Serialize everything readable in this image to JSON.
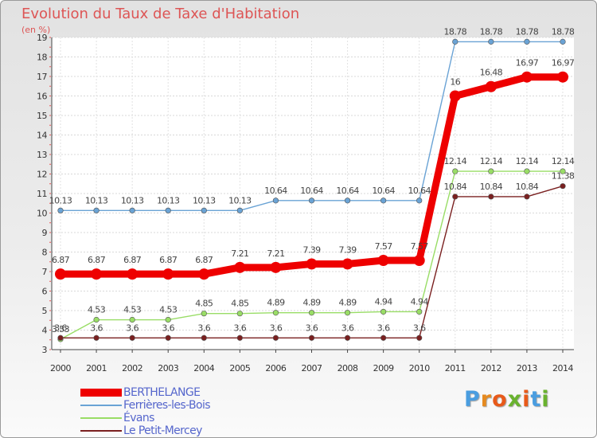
{
  "chart_data": {
    "type": "line",
    "title": "Evolution du Taux de Taxe d'Habitation",
    "unit_label": "(en %)",
    "x": [
      "2000",
      "2001",
      "2002",
      "2003",
      "2004",
      "2005",
      "2006",
      "2007",
      "2008",
      "2009",
      "2010",
      "2011",
      "2012",
      "2013",
      "2014"
    ],
    "ylim": [
      3,
      19
    ],
    "yticks": [
      "3",
      "4",
      "5",
      "6",
      "7",
      "8",
      "9",
      "10",
      "11",
      "12",
      "13",
      "14",
      "15",
      "16",
      "17",
      "18",
      "19"
    ],
    "grid": true,
    "legend_position": "bottom-left",
    "series": [
      {
        "name": "BERTHELANGE",
        "color": "#ee0000",
        "values": [
          6.87,
          6.87,
          6.87,
          6.87,
          6.87,
          7.21,
          7.21,
          7.39,
          7.39,
          7.57,
          7.57,
          16,
          16.48,
          16.97,
          16.97
        ],
        "labels": [
          "6.87",
          "6.87",
          "6.87",
          "6.87",
          "6.87",
          "7.21",
          "7.21",
          "7.39",
          "7.39",
          "7.57",
          "7.57",
          "16",
          "16.48",
          "16.97",
          "16.97"
        ]
      },
      {
        "name": "Ferrières-les-Bois",
        "color": "#6aa3d5",
        "values": [
          10.13,
          10.13,
          10.13,
          10.13,
          10.13,
          10.13,
          10.64,
          10.64,
          10.64,
          10.64,
          10.64,
          18.78,
          18.78,
          18.78,
          18.78
        ],
        "labels": [
          "10.13",
          "10.13",
          "10.13",
          "10.13",
          "10.13",
          "10.13",
          "10.64",
          "10.64",
          "10.64",
          "10.64",
          "10.64",
          "18.78",
          "18.78",
          "18.78",
          "18.78"
        ]
      },
      {
        "name": "Évans",
        "color": "#99dd66",
        "values": [
          3.53,
          4.53,
          4.53,
          4.53,
          4.85,
          4.85,
          4.89,
          4.89,
          4.89,
          4.94,
          4.94,
          12.14,
          12.14,
          12.14,
          12.14
        ],
        "labels": [
          "3.53",
          "4.53",
          "4.53",
          "4.53",
          "4.85",
          "4.85",
          "4.89",
          "4.89",
          "4.89",
          "4.94",
          "4.94",
          "12.14",
          "12.14",
          "12.14",
          "12.14"
        ]
      },
      {
        "name": "Le Petit-Mercey",
        "color": "#7a2020",
        "values": [
          3.6,
          3.6,
          3.6,
          3.6,
          3.6,
          3.6,
          3.6,
          3.6,
          3.6,
          3.6,
          3.6,
          10.84,
          10.84,
          10.84,
          11.38
        ],
        "labels": [
          "3.6",
          "3.6",
          "3.6",
          "3.6",
          "3.6",
          "3.6",
          "3.6",
          "3.6",
          "3.6",
          "3.6",
          "3.6",
          "10.84",
          "10.84",
          "10.84",
          "11.38"
        ]
      }
    ]
  },
  "logo": {
    "letters": [
      "P",
      "r",
      "o",
      "x",
      "i",
      "t",
      "i"
    ],
    "colors": [
      "#4a9de0",
      "#e58a20",
      "#e85a1a",
      "#69b22e",
      "#e85a1a",
      "#4a9de0",
      "#69b22e"
    ]
  }
}
